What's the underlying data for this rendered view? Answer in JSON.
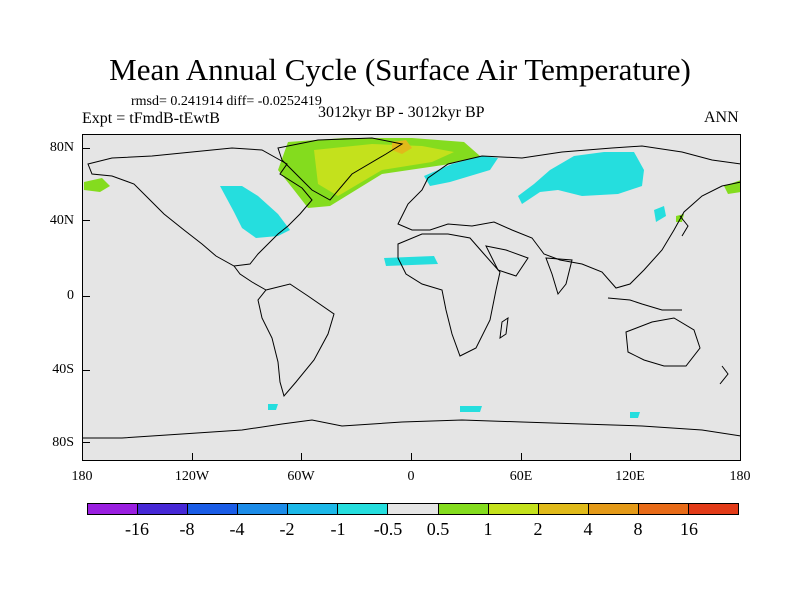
{
  "title": "Mean Annual Cycle (Surface Air Temperature)",
  "stats": "rmsd= 0.241914 diff= -0.0252419",
  "experiment": "Expt = tFmdB-tEwtB",
  "period": "3012kyr BP - 3012kyr BP",
  "season": "ANN",
  "map": {
    "latitude_labels": [
      "80N",
      "40N",
      "0",
      "40S",
      "80S"
    ],
    "longitude_labels": [
      "180",
      "120W",
      "60W",
      "0",
      "60E",
      "120E",
      "180"
    ],
    "background_color": "#e5e5e5"
  },
  "colorbar": {
    "labels": [
      "-16",
      "-8",
      "-4",
      "-2",
      "-1",
      "-0.5",
      "0.5",
      "1",
      "2",
      "4",
      "8",
      "16"
    ],
    "colors": [
      "#9a1fe0",
      "#4628d6",
      "#1a5ce6",
      "#1c8ce8",
      "#1cb8e8",
      "#25dede",
      "#e5e5e5",
      "#84dc1e",
      "#c4e11c",
      "#e0ba1a",
      "#e49a18",
      "#e86b18",
      "#e23b18"
    ]
  }
}
